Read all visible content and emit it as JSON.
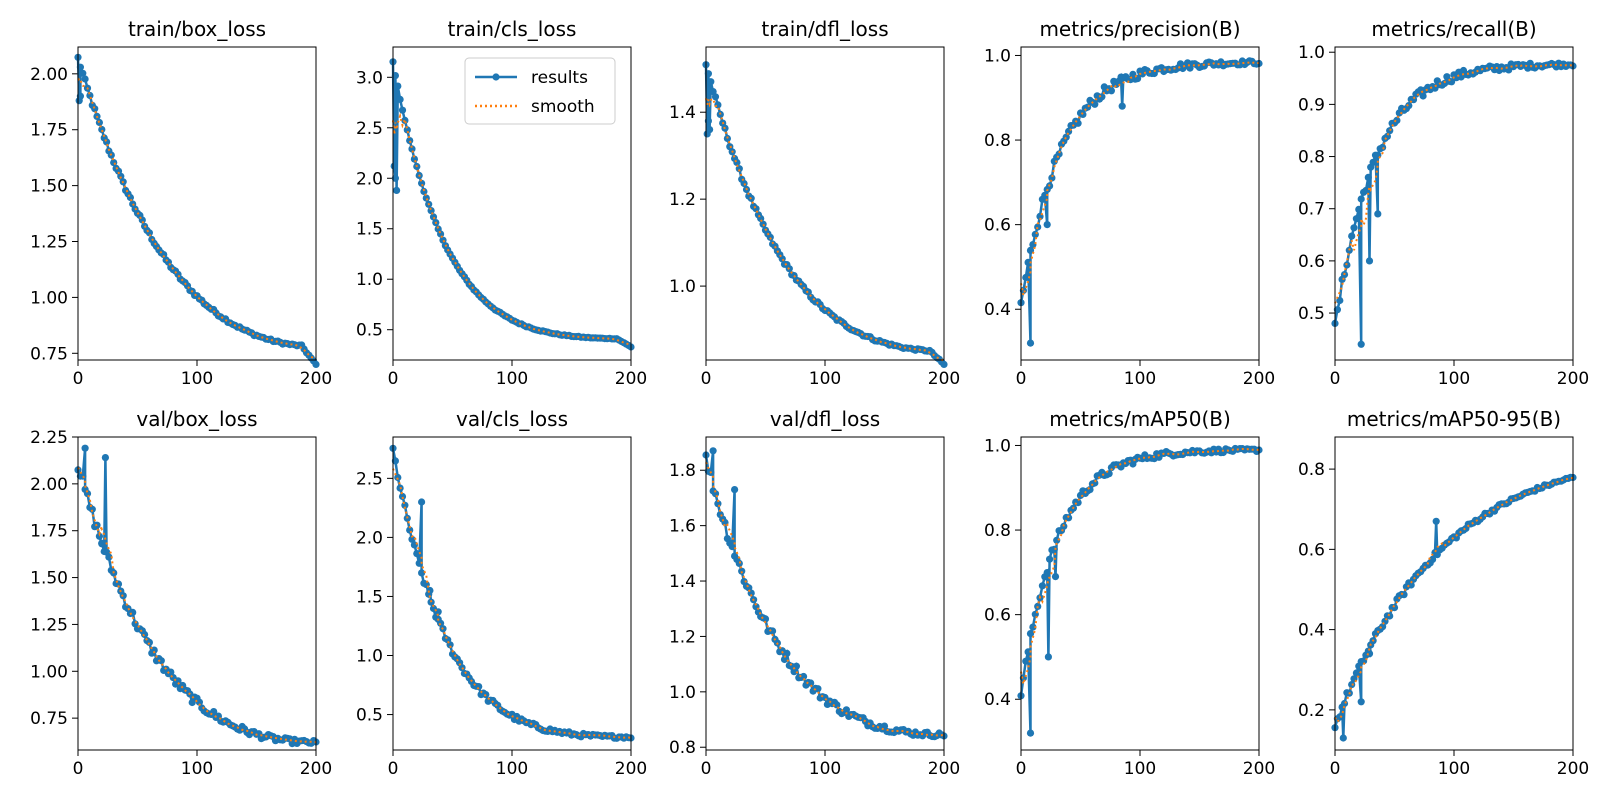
{
  "figure": {
    "background": "#ffffff"
  },
  "legend": {
    "entries": [
      {
        "label": "results",
        "color": "#1f77b4"
      },
      {
        "label": "smooth",
        "color": "#ff7f0e"
      }
    ]
  },
  "chart_data": [
    {
      "type": "line",
      "title": "train/box_loss",
      "xlim": [
        0,
        200
      ],
      "ylim": [
        0.72,
        2.12
      ],
      "xticks": [
        0,
        100,
        200
      ],
      "yticks": [
        0.75,
        1.0,
        1.25,
        1.5,
        1.75,
        2.0
      ],
      "y_decimals": 2,
      "start": 2.07,
      "k": 0.4,
      "end": 0.78,
      "final_drop": 0.08,
      "noise": 0.012,
      "spikes": [
        [
          1,
          1.88
        ],
        [
          2,
          1.9
        ]
      ],
      "series": [
        {
          "name": "results",
          "color": "#1f77b4"
        },
        {
          "name": "smooth",
          "color": "#ff7f0e"
        }
      ]
    },
    {
      "type": "line",
      "title": "train/cls_loss",
      "xlim": [
        0,
        200
      ],
      "ylim": [
        0.2,
        3.3
      ],
      "xticks": [
        0,
        100,
        200
      ],
      "yticks": [
        0.5,
        1.0,
        1.5,
        2.0,
        2.5,
        3.0
      ],
      "y_decimals": 1,
      "start": 3.15,
      "k": 1.15,
      "end": 0.41,
      "final_drop": 0.08,
      "noise": 0.01,
      "spikes": [
        [
          1,
          2.12
        ],
        [
          2,
          2.0
        ],
        [
          3,
          1.88
        ]
      ],
      "series": [
        {
          "name": "results",
          "color": "#1f77b4"
        },
        {
          "name": "smooth",
          "color": "#ff7f0e"
        }
      ],
      "legend_here": true
    },
    {
      "type": "line",
      "title": "train/dfl_loss",
      "xlim": [
        0,
        200
      ],
      "ylim": [
        0.83,
        1.55
      ],
      "xticks": [
        0,
        100,
        200
      ],
      "yticks": [
        1.0,
        1.2,
        1.4
      ],
      "y_decimals": 1,
      "start": 1.51,
      "k": 0.55,
      "end": 0.85,
      "final_drop": 0.03,
      "noise": 0.006,
      "spikes": [
        [
          1,
          1.35
        ],
        [
          2,
          1.38
        ],
        [
          3,
          1.36
        ]
      ],
      "series": [
        {
          "name": "results",
          "color": "#1f77b4"
        },
        {
          "name": "smooth",
          "color": "#ff7f0e"
        }
      ]
    },
    {
      "type": "line",
      "title": "metrics/precision(B)",
      "xlim": [
        0,
        200
      ],
      "ylim": [
        0.28,
        1.02
      ],
      "xticks": [
        0,
        100,
        200
      ],
      "yticks": [
        0.4,
        0.6,
        0.8,
        1.0
      ],
      "y_decimals": 1,
      "start": 0.41,
      "k": 1.0,
      "end": 0.985,
      "final_drop": 0,
      "noise": 0.015,
      "spikes": [
        [
          8,
          0.32
        ],
        [
          22,
          0.6
        ],
        [
          85,
          0.88
        ]
      ],
      "series": [
        {
          "name": "results",
          "color": "#1f77b4"
        },
        {
          "name": "smooth",
          "color": "#ff7f0e"
        }
      ]
    },
    {
      "type": "line",
      "title": "metrics/recall(B)",
      "xlim": [
        0,
        200
      ],
      "ylim": [
        0.41,
        1.01
      ],
      "xticks": [
        0,
        100,
        200
      ],
      "yticks": [
        0.5,
        0.6,
        0.7,
        0.8,
        0.9,
        1.0
      ],
      "y_decimals": 1,
      "start": 0.47,
      "k": 1.0,
      "end": 0.978,
      "final_drop": 0,
      "noise": 0.012,
      "spikes": [
        [
          22,
          0.44
        ],
        [
          29,
          0.6
        ],
        [
          36,
          0.69
        ]
      ],
      "series": [
        {
          "name": "results",
          "color": "#1f77b4"
        },
        {
          "name": "smooth",
          "color": "#ff7f0e"
        }
      ]
    },
    {
      "type": "line",
      "title": "val/box_loss",
      "xlim": [
        0,
        200
      ],
      "ylim": [
        0.58,
        2.25
      ],
      "xticks": [
        0,
        100,
        200
      ],
      "yticks": [
        0.75,
        1.0,
        1.25,
        1.5,
        1.75,
        2.0,
        2.25
      ],
      "y_decimals": 2,
      "start": 2.1,
      "k": 0.55,
      "end": 0.62,
      "final_drop": 0,
      "noise": 0.035,
      "spikes": [
        [
          6,
          2.19
        ],
        [
          23,
          2.14
        ],
        [
          20,
          1.68
        ]
      ],
      "series": [
        {
          "name": "results",
          "color": "#1f77b4"
        },
        {
          "name": "smooth",
          "color": "#ff7f0e"
        }
      ]
    },
    {
      "type": "line",
      "title": "val/cls_loss",
      "xlim": [
        0,
        200
      ],
      "ylim": [
        0.2,
        2.85
      ],
      "xticks": [
        0,
        100,
        200
      ],
      "yticks": [
        0.5,
        1.0,
        1.5,
        2.0,
        2.5
      ],
      "y_decimals": 1,
      "start": 2.74,
      "k": 1.1,
      "end": 0.31,
      "final_drop": 0,
      "noise": 0.035,
      "spikes": [
        [
          24,
          2.3
        ],
        [
          31,
          1.55
        ],
        [
          38,
          1.37
        ]
      ],
      "series": [
        {
          "name": "results",
          "color": "#1f77b4"
        },
        {
          "name": "smooth",
          "color": "#ff7f0e"
        }
      ]
    },
    {
      "type": "line",
      "title": "val/dfl_loss",
      "xlim": [
        0,
        200
      ],
      "ylim": [
        0.79,
        1.92
      ],
      "xticks": [
        0,
        100,
        200
      ],
      "yticks": [
        0.8,
        1.0,
        1.2,
        1.4,
        1.6,
        1.8
      ],
      "y_decimals": 1,
      "start": 1.84,
      "k": 0.62,
      "end": 0.845,
      "final_drop": 0,
      "noise": 0.025,
      "spikes": [
        [
          6,
          1.87
        ],
        [
          24,
          1.73
        ]
      ],
      "series": [
        {
          "name": "results",
          "color": "#1f77b4"
        },
        {
          "name": "smooth",
          "color": "#ff7f0e"
        }
      ]
    },
    {
      "type": "line",
      "title": "metrics/mAP50(B)",
      "xlim": [
        0,
        200
      ],
      "ylim": [
        0.28,
        1.02
      ],
      "xticks": [
        0,
        100,
        200
      ],
      "yticks": [
        0.4,
        0.6,
        0.8,
        1.0
      ],
      "y_decimals": 1,
      "start": 0.41,
      "k": 1.1,
      "end": 0.99,
      "final_drop": 0,
      "noise": 0.012,
      "spikes": [
        [
          8,
          0.32
        ],
        [
          23,
          0.5
        ],
        [
          29,
          0.69
        ]
      ],
      "series": [
        {
          "name": "results",
          "color": "#1f77b4"
        },
        {
          "name": "smooth",
          "color": "#ff7f0e"
        }
      ]
    },
    {
      "type": "line",
      "title": "metrics/mAP50-95(B)",
      "xlim": [
        0,
        200
      ],
      "ylim": [
        0.1,
        0.88
      ],
      "xticks": [
        0,
        100,
        200
      ],
      "yticks": [
        0.2,
        0.4,
        0.6,
        0.8
      ],
      "y_decimals": 1,
      "start": 0.16,
      "k": 0.38,
      "end": 0.85,
      "final_drop": 0,
      "noise": 0.01,
      "spikes": [
        [
          7,
          0.13
        ],
        [
          22,
          0.22
        ],
        [
          29,
          0.34
        ],
        [
          85,
          0.67
        ]
      ],
      "series": [
        {
          "name": "results",
          "color": "#1f77b4"
        },
        {
          "name": "smooth",
          "color": "#ff7f0e"
        }
      ]
    }
  ]
}
